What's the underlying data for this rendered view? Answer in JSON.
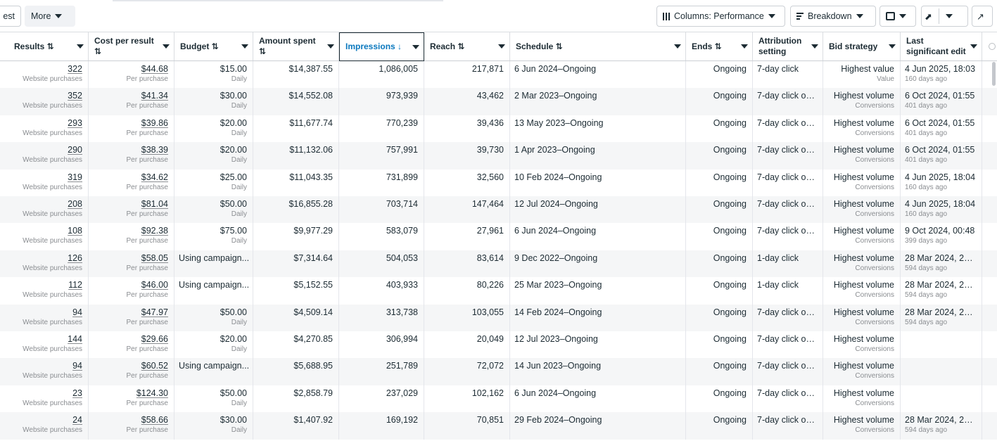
{
  "toolbar": {
    "partial_left": "est",
    "more_label": "More",
    "columns_label": "Columns: Performance",
    "breakdown_label": "Breakdown"
  },
  "columns": [
    {
      "label": "Results ⇅",
      "sortable": true
    },
    {
      "label": "Cost per result ⇅"
    },
    {
      "label": "Budget ⇅"
    },
    {
      "label": "Amount spent ⇅"
    },
    {
      "label": "Impressions ↓",
      "active": true
    },
    {
      "label": "Reach ⇅"
    },
    {
      "label": "Schedule ⇅"
    },
    {
      "label": "Ends ⇅"
    },
    {
      "label": "Attribution setting"
    },
    {
      "label": "Bid strategy"
    },
    {
      "label": "Last significant edit"
    }
  ],
  "rows": [
    {
      "results": "322",
      "results_sub": "Website purchases",
      "cpr": "$44.68",
      "cpr_sub": "Per purchase",
      "budget": "$15.00",
      "budget_sub": "Daily",
      "spent": "$14,387.55",
      "impressions": "1,086,005",
      "reach": "217,871",
      "schedule": "6 Jun 2024–Ongoing",
      "ends": "Ongoing",
      "attribution": "7-day click",
      "bid": "Highest value",
      "bid_sub": "Value",
      "edit": "4 Jun 2025, 18:03",
      "edit_sub": "160 days ago"
    },
    {
      "results": "352",
      "results_sub": "Website purchases",
      "cpr": "$41.34",
      "cpr_sub": "Per purchase",
      "budget": "$30.00",
      "budget_sub": "Daily",
      "spent": "$14,552.08",
      "impressions": "973,939",
      "reach": "43,462",
      "schedule": "2 Mar 2023–Ongoing",
      "ends": "Ongoing",
      "attribution": "7-day click or ...",
      "bid": "Highest volume",
      "bid_sub": "Conversions",
      "edit": "6 Oct 2024, 01:55",
      "edit_sub": "401 days ago"
    },
    {
      "results": "293",
      "results_sub": "Website purchases",
      "cpr": "$39.86",
      "cpr_sub": "Per purchase",
      "budget": "$20.00",
      "budget_sub": "Daily",
      "spent": "$11,677.74",
      "impressions": "770,239",
      "reach": "39,436",
      "schedule": "13 May 2023–Ongoing",
      "ends": "Ongoing",
      "attribution": "7-day click or ...",
      "bid": "Highest volume",
      "bid_sub": "Conversions",
      "edit": "6 Oct 2024, 01:55",
      "edit_sub": "401 days ago"
    },
    {
      "results": "290",
      "results_sub": "Website purchases",
      "cpr": "$38.39",
      "cpr_sub": "Per purchase",
      "budget": "$20.00",
      "budget_sub": "Daily",
      "spent": "$11,132.06",
      "impressions": "757,991",
      "reach": "39,730",
      "schedule": "1 Apr 2023–Ongoing",
      "ends": "Ongoing",
      "attribution": "7-day click or ...",
      "bid": "Highest volume",
      "bid_sub": "Conversions",
      "edit": "6 Oct 2024, 01:55",
      "edit_sub": "401 days ago"
    },
    {
      "results": "319",
      "results_sub": "Website purchases",
      "cpr": "$34.62",
      "cpr_sub": "Per purchase",
      "budget": "$25.00",
      "budget_sub": "Daily",
      "spent": "$11,043.35",
      "impressions": "731,899",
      "reach": "32,560",
      "schedule": "10 Feb 2024–Ongoing",
      "ends": "Ongoing",
      "attribution": "7-day click or ...",
      "bid": "Highest volume",
      "bid_sub": "Conversions",
      "edit": "4 Jun 2025, 18:04",
      "edit_sub": "160 days ago"
    },
    {
      "results": "208",
      "results_sub": "Website purchases",
      "cpr": "$81.04",
      "cpr_sub": "Per purchase",
      "budget": "$50.00",
      "budget_sub": "Daily",
      "spent": "$16,855.28",
      "impressions": "703,714",
      "reach": "147,464",
      "schedule": "12 Jul 2024–Ongoing",
      "ends": "Ongoing",
      "attribution": "7-day click or ...",
      "bid": "Highest volume",
      "bid_sub": "Conversions",
      "edit": "4 Jun 2025, 18:04",
      "edit_sub": "160 days ago"
    },
    {
      "results": "108",
      "results_sub": "Website purchases",
      "cpr": "$92.38",
      "cpr_sub": "Per purchase",
      "budget": "$75.00",
      "budget_sub": "Daily",
      "spent": "$9,977.29",
      "impressions": "583,079",
      "reach": "27,961",
      "schedule": "6 Jun 2024–Ongoing",
      "ends": "Ongoing",
      "attribution": "7-day click or ...",
      "bid": "Highest volume",
      "bid_sub": "Conversions",
      "edit": "9 Oct 2024, 00:48",
      "edit_sub": "399 days ago"
    },
    {
      "results": "126",
      "results_sub": "Website purchases",
      "cpr": "$58.05",
      "cpr_sub": "Per purchase",
      "budget": "Using campaign...",
      "budget_sub": "",
      "spent": "$7,314.64",
      "impressions": "504,053",
      "reach": "83,614",
      "schedule": "9 Dec 2022–Ongoing",
      "ends": "Ongoing",
      "attribution": "1-day click",
      "bid": "Highest volume",
      "bid_sub": "Conversions",
      "edit": "28 Mar 2024, 20...",
      "edit_sub": "594 days ago"
    },
    {
      "results": "112",
      "results_sub": "Website purchases",
      "cpr": "$46.00",
      "cpr_sub": "Per purchase",
      "budget": "Using campaign...",
      "budget_sub": "",
      "spent": "$5,152.55",
      "impressions": "403,933",
      "reach": "80,226",
      "schedule": "25 Mar 2023–Ongoing",
      "ends": "Ongoing",
      "attribution": "1-day click",
      "bid": "Highest volume",
      "bid_sub": "Conversions",
      "edit": "28 Mar 2024, 20...",
      "edit_sub": "594 days ago"
    },
    {
      "results": "94",
      "results_sub": "Website purchases",
      "cpr": "$47.97",
      "cpr_sub": "Per purchase",
      "budget": "$50.00",
      "budget_sub": "Daily",
      "spent": "$4,509.14",
      "impressions": "313,738",
      "reach": "103,055",
      "schedule": "14 Feb 2024–Ongoing",
      "ends": "Ongoing",
      "attribution": "7-day click or ...",
      "bid": "Highest volume",
      "bid_sub": "Conversions",
      "edit": "28 Mar 2024, 20...",
      "edit_sub": "594 days ago"
    },
    {
      "results": "144",
      "results_sub": "Website purchases",
      "cpr": "$29.66",
      "cpr_sub": "Per purchase",
      "budget": "$20.00",
      "budget_sub": "Daily",
      "spent": "$4,270.85",
      "impressions": "306,994",
      "reach": "20,049",
      "schedule": "12 Jul 2023–Ongoing",
      "ends": "Ongoing",
      "attribution": "7-day click or ...",
      "bid": "Highest volume",
      "bid_sub": "Conversions",
      "edit": "",
      "edit_sub": ""
    },
    {
      "results": "94",
      "results_sub": "Website purchases",
      "cpr": "$60.52",
      "cpr_sub": "Per purchase",
      "budget": "Using campaign...",
      "budget_sub": "",
      "spent": "$5,688.95",
      "impressions": "251,789",
      "reach": "72,072",
      "schedule": "14 Jun 2023–Ongoing",
      "ends": "Ongoing",
      "attribution": "7-day click or ...",
      "bid": "Highest volume",
      "bid_sub": "Conversions",
      "edit": "",
      "edit_sub": ""
    },
    {
      "results": "23",
      "results_sub": "Website purchases",
      "cpr": "$124.30",
      "cpr_sub": "Per purchase",
      "budget": "$50.00",
      "budget_sub": "Daily",
      "spent": "$2,858.79",
      "impressions": "237,029",
      "reach": "102,162",
      "schedule": "6 Jun 2024–Ongoing",
      "ends": "Ongoing",
      "attribution": "7-day click or ...",
      "bid": "Highest volume",
      "bid_sub": "Conversions",
      "edit": "",
      "edit_sub": ""
    },
    {
      "results": "24",
      "results_sub": "Website purchases",
      "cpr": "$58.66",
      "cpr_sub": "Per purchase",
      "budget": "$30.00",
      "budget_sub": "Daily",
      "spent": "$1,407.92",
      "impressions": "169,192",
      "reach": "70,851",
      "schedule": "29 Feb 2024–Ongoing",
      "ends": "Ongoing",
      "attribution": "7-day click or ...",
      "bid": "Highest volume",
      "bid_sub": "Conversions",
      "edit": "28 Mar 2024, 20...",
      "edit_sub": "594 days ago"
    }
  ]
}
